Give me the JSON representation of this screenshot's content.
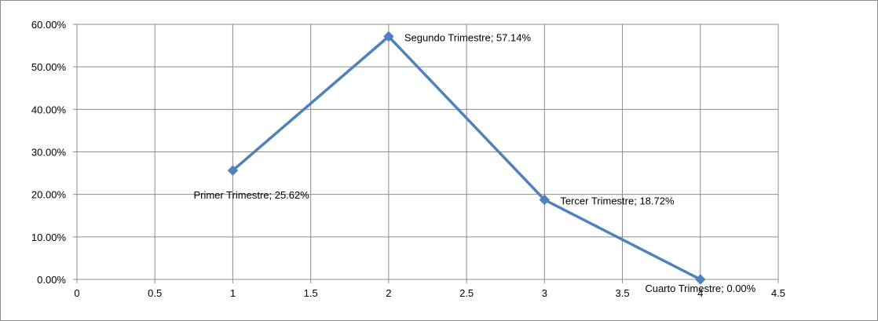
{
  "chart_data": {
    "type": "scatter",
    "title": "",
    "xlabel": "",
    "ylabel": "",
    "xlim": [
      0,
      4.5
    ],
    "ylim": [
      0,
      0.6
    ],
    "x_ticks": [
      "0",
      "0.5",
      "1",
      "1.5",
      "2",
      "2.5",
      "3",
      "3.5",
      "4",
      "4.5"
    ],
    "y_ticks": [
      "0.00%",
      "10.00%",
      "20.00%",
      "30.00%",
      "40.00%",
      "50.00%",
      "60.00%"
    ],
    "grid": true,
    "legend": "none",
    "series_color": "#4f81bd",
    "series": [
      {
        "points": [
          {
            "x": 1,
            "y": 0.2562,
            "label": "Primer Trimestre; 25.62%"
          },
          {
            "x": 2,
            "y": 0.5714,
            "label": "Segundo Trimestre; 57.14%"
          },
          {
            "x": 3,
            "y": 0.1872,
            "label": "Tercer Trimestre; 18.72%"
          },
          {
            "x": 4,
            "y": 0.0,
            "label": "Cuarto Trimestre; 0.00%"
          }
        ]
      }
    ]
  }
}
